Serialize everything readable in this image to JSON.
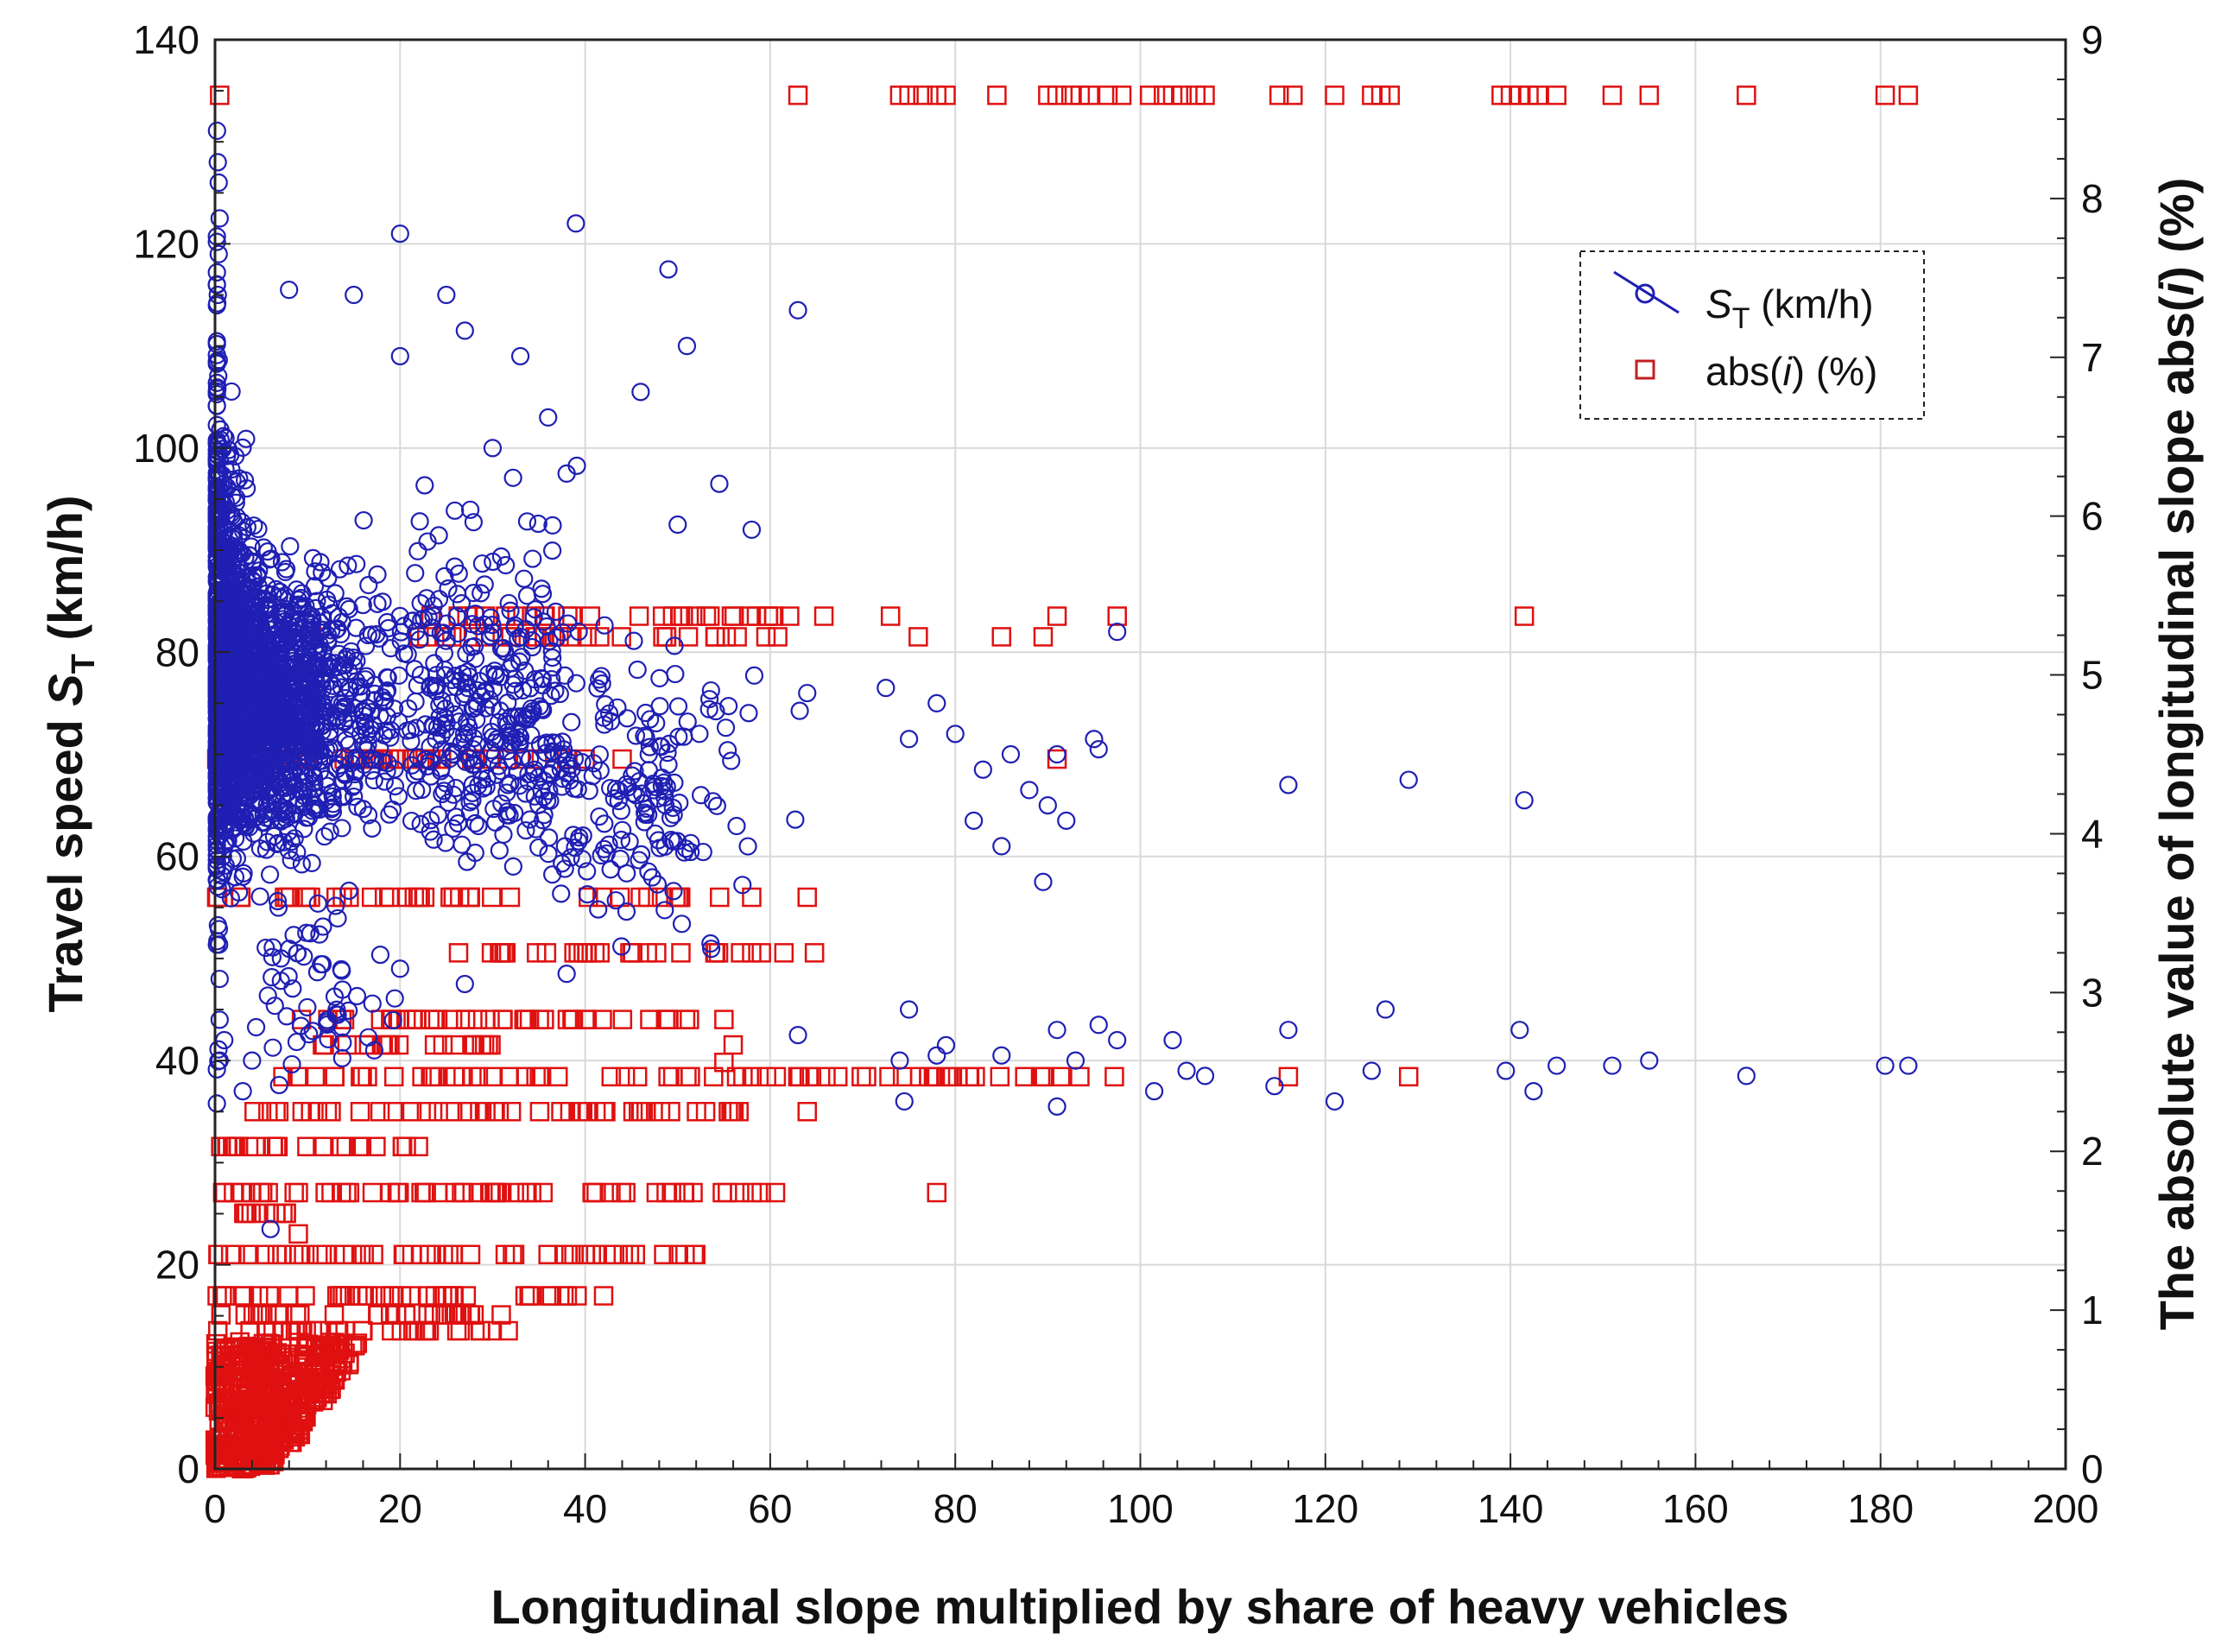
{
  "chart_data": {
    "type": "scatter",
    "xlabel": "Longitudinal slope multiplied by share of heavy vehicles",
    "ylabel_left": {
      "main": "Travel speed ",
      "symbol": "S",
      "sub": "T",
      "unit": " (km/h)"
    },
    "ylabel_right": {
      "main": "The absolute value of longitudinal slope abs(",
      "symbol": "i",
      "unit": ") (%)"
    },
    "xlim": [
      0,
      200
    ],
    "ylim_left": [
      0,
      140
    ],
    "ylim_right": [
      0,
      9
    ],
    "x_ticks": [
      "0",
      "20",
      "40",
      "60",
      "80",
      "100",
      "120",
      "140",
      "160",
      "180",
      "200"
    ],
    "y_left_ticks": [
      "0",
      "20",
      "40",
      "60",
      "80",
      "100",
      "120",
      "140"
    ],
    "y_right_ticks": [
      "0",
      "1",
      "2",
      "3",
      "4",
      "5",
      "6",
      "7",
      "8",
      "9"
    ],
    "grid": true,
    "legend_position": "top-right",
    "legend": [
      {
        "symbol": "S",
        "sub": "T",
        "text": " (km/h)",
        "marker": "circle"
      },
      {
        "pre": "abs(",
        "italic": "i",
        "text": ") (%)",
        "marker": "square"
      }
    ],
    "colors": {
      "speed": "#1f1fb4",
      "slope": "#e01010",
      "grid": "#d9d9d9"
    },
    "series": [
      {
        "name": "ST (km/h)",
        "axis": "left",
        "marker": "circle",
        "points": [
          [
            39,
            122
          ],
          [
            20,
            121
          ],
          [
            49,
            117.5
          ],
          [
            63,
            113.5
          ],
          [
            51,
            110
          ],
          [
            46,
            105.5
          ],
          [
            54.5,
            96.5
          ],
          [
            58,
            92
          ],
          [
            50,
            92.5
          ],
          [
            97.5,
            82
          ],
          [
            78,
            75
          ],
          [
            72.5,
            76.5
          ],
          [
            64,
            76
          ],
          [
            75,
            71.5
          ],
          [
            80,
            72
          ],
          [
            83,
            68.5
          ],
          [
            86,
            70
          ],
          [
            91,
            70
          ],
          [
            95,
            71.5
          ],
          [
            95.5,
            70.5
          ],
          [
            92,
            63.5
          ],
          [
            89.5,
            57.5
          ],
          [
            85,
            61
          ],
          [
            82,
            63.5
          ],
          [
            88,
            66.5
          ],
          [
            90,
            65
          ],
          [
            116,
            67
          ],
          [
            129,
            67.5
          ],
          [
            141.5,
            65.5
          ],
          [
            75,
            45
          ],
          [
            79,
            41.5
          ],
          [
            78,
            40.5
          ],
          [
            74,
            40
          ],
          [
            74.5,
            36
          ],
          [
            85,
            40.5
          ],
          [
            91,
            43
          ],
          [
            91,
            35.5
          ],
          [
            93,
            40
          ],
          [
            95.5,
            43.5
          ],
          [
            97.5,
            42
          ],
          [
            101.5,
            37
          ],
          [
            103.5,
            42
          ],
          [
            105,
            39
          ],
          [
            107,
            38.5
          ],
          [
            114.5,
            37.5
          ],
          [
            116,
            43
          ],
          [
            121,
            36
          ],
          [
            125,
            39
          ],
          [
            126.5,
            45
          ],
          [
            139.5,
            39
          ],
          [
            141,
            43
          ],
          [
            142.5,
            37
          ],
          [
            145,
            39.5
          ],
          [
            151,
            39.5
          ],
          [
            155,
            40
          ],
          [
            165.5,
            38.5
          ],
          [
            180.5,
            39.5
          ],
          [
            183,
            39.5
          ],
          [
            63,
            42.5
          ],
          [
            0.3,
            128
          ],
          [
            0.4,
            126
          ],
          [
            0.5,
            122.5
          ],
          [
            0.4,
            119
          ],
          [
            0.3,
            115
          ],
          [
            8,
            115.5
          ],
          [
            15,
            115
          ],
          [
            25,
            115
          ],
          [
            27,
            111.5
          ],
          [
            20,
            109
          ],
          [
            33,
            109
          ],
          [
            36,
            103
          ],
          [
            30,
            100
          ],
          [
            38,
            97.5
          ],
          [
            20,
            49
          ],
          [
            27,
            47.5
          ],
          [
            38,
            48.5
          ],
          [
            6,
            23.5
          ],
          [
            0.5,
            40
          ],
          [
            0.5,
            44
          ],
          [
            1,
            42
          ],
          [
            0.5,
            48
          ],
          [
            3,
            37
          ],
          [
            4,
            40
          ]
        ],
        "clusters": [
          {
            "cx": [
              0,
              30
            ],
            "cy": [
              60,
              90
            ],
            "n": 1500
          },
          {
            "cx": [
              0,
              8
            ],
            "cy": [
              55,
              105
            ],
            "n": 500
          },
          {
            "cx": [
              0,
              1
            ],
            "cy": [
              40,
              125
            ],
            "n": 200
          },
          {
            "cx": [
              10,
              45
            ],
            "cy": [
              55,
              95
            ],
            "n": 400
          },
          {
            "cx": [
              30,
              62
            ],
            "cy": [
              50,
              82
            ],
            "n": 160
          },
          {
            "cx": [
              2,
              20
            ],
            "cy": [
              38,
              58
            ],
            "n": 60
          }
        ]
      },
      {
        "name": "abs(i) (%)",
        "axis": "right",
        "marker": "square",
        "points": [
          [
            0.5,
            8.65
          ],
          [
            63,
            8.65
          ],
          [
            74,
            8.65
          ],
          [
            75,
            8.65
          ],
          [
            76.5,
            8.65
          ],
          [
            78,
            8.65
          ],
          [
            79,
            8.65
          ],
          [
            84.5,
            8.65
          ],
          [
            90,
            8.65
          ],
          [
            91,
            8.65
          ],
          [
            92.5,
            8.65
          ],
          [
            93.5,
            8.65
          ],
          [
            94.5,
            8.65
          ],
          [
            96.5,
            8.65
          ],
          [
            98,
            8.65
          ],
          [
            101,
            8.65
          ],
          [
            102.5,
            8.65
          ],
          [
            103.5,
            8.65
          ],
          [
            104.5,
            8.65
          ],
          [
            106,
            8.65
          ],
          [
            107,
            8.65
          ],
          [
            115,
            8.65
          ],
          [
            116.5,
            8.65
          ],
          [
            121,
            8.65
          ],
          [
            125,
            8.65
          ],
          [
            126,
            8.65
          ],
          [
            127,
            8.65
          ],
          [
            139,
            8.65
          ],
          [
            140,
            8.65
          ],
          [
            141,
            8.65
          ],
          [
            142,
            8.65
          ],
          [
            143,
            8.65
          ],
          [
            145,
            8.65
          ],
          [
            151,
            8.65
          ],
          [
            155,
            8.65
          ],
          [
            165.5,
            8.65
          ],
          [
            180.5,
            8.65
          ],
          [
            183,
            8.65
          ],
          [
            73,
            5.37
          ],
          [
            91,
            5.37
          ],
          [
            97.5,
            5.37
          ],
          [
            141.5,
            5.37
          ],
          [
            10.5,
            5.24
          ],
          [
            76,
            5.24
          ],
          [
            85,
            5.24
          ],
          [
            89.5,
            5.24
          ],
          [
            38,
            4.47
          ],
          [
            40,
            4.47
          ],
          [
            44,
            4.47
          ],
          [
            91,
            4.47
          ],
          [
            58,
            3.6
          ],
          [
            64,
            3.6
          ],
          [
            56,
            2.67
          ],
          [
            55,
            2.83
          ],
          [
            116,
            2.47
          ],
          [
            129,
            2.47
          ],
          [
            64,
            2.25
          ],
          [
            78,
            1.74
          ],
          [
            55,
            2.56
          ],
          [
            9,
            1.48
          ]
        ],
        "rows": [
          {
            "level": 5.37,
            "x": [
              18,
              66
            ],
            "n": 30
          },
          {
            "level": 5.24,
            "x": [
              18,
              62
            ],
            "n": 28
          },
          {
            "level": 4.47,
            "x": [
              0,
              35
            ],
            "n": 40
          },
          {
            "level": 3.6,
            "x": [
              0,
              32
            ],
            "n": 30
          },
          {
            "level": 3.6,
            "x": [
              38,
              56
            ],
            "n": 12
          },
          {
            "level": 3.25,
            "x": [
              26,
              66
            ],
            "n": 30
          },
          {
            "level": 2.83,
            "x": [
              8,
              52
            ],
            "n": 40
          },
          {
            "level": 2.67,
            "x": [
              11,
              30
            ],
            "n": 20
          },
          {
            "level": 2.47,
            "x": [
              5,
              98
            ],
            "n": 70
          },
          {
            "level": 2.25,
            "x": [
              4,
              57
            ],
            "n": 50
          },
          {
            "level": 2.03,
            "x": [
              0,
              24
            ],
            "n": 25
          },
          {
            "level": 1.74,
            "x": [
              0,
              63
            ],
            "n": 55
          },
          {
            "level": 1.61,
            "x": [
              0,
              8
            ],
            "n": 10
          },
          {
            "level": 1.35,
            "x": [
              0,
              54
            ],
            "n": 50
          },
          {
            "level": 1.09,
            "x": [
              0,
              43
            ],
            "n": 40
          },
          {
            "level": 0.97,
            "x": [
              0,
              31
            ],
            "n": 30
          },
          {
            "level": 0.87,
            "x": [
              0,
              32
            ],
            "n": 30
          }
        ],
        "triangle": {
          "x_max": 20,
          "y_max": 0.8,
          "n": 500
        }
      }
    ]
  }
}
